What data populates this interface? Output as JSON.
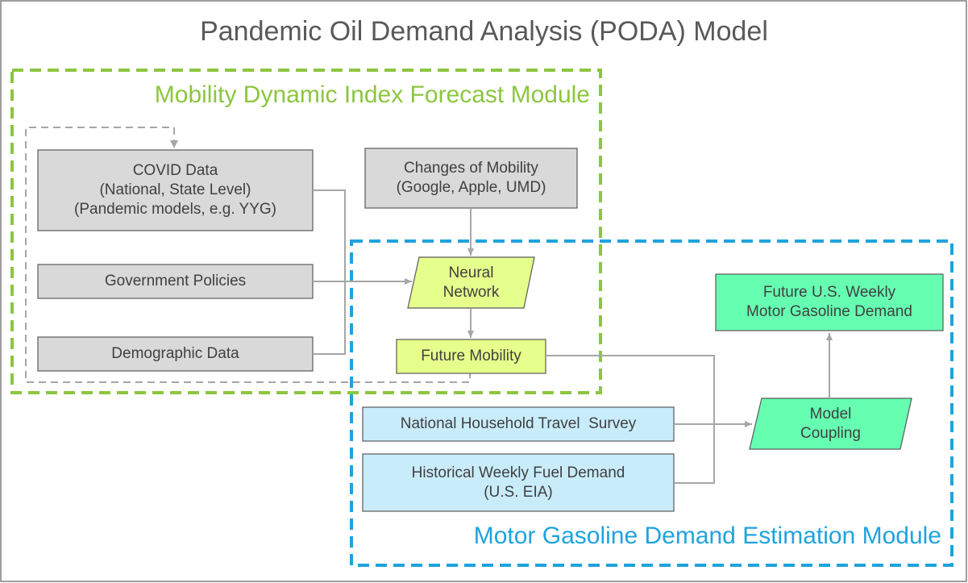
{
  "title": "Pandemic Oil Demand Analysis (PODA) Model",
  "modules": {
    "mobility": "Mobility Dynamic Index Forecast Module",
    "gasoline": "Motor Gasoline Demand Estimation Module"
  },
  "nodes": {
    "covid_data": "COVID Data\n(National, State Level)\n(Pandemic models, e.g. YYG)",
    "government_policies": "Government Policies",
    "demographic_data": "Demographic Data",
    "changes_of_mobility": "Changes of Mobility\n(Google, Apple, UMD)",
    "neural_network": "Neural\nNetwork",
    "future_mobility": "Future Mobility",
    "nhts": "National Household Travel  Survey",
    "historical_fuel": "Historical Weekly Fuel Demand\n(U.S. EIA)",
    "model_coupling": "Model\nCoupling",
    "future_demand": "Future U.S. Weekly\nMotor Gasoline Demand"
  },
  "colors": {
    "gray_fill": "#d9d9d9",
    "yellow_fill": "#e6ff8c",
    "blue_fill": "#c9ecfb",
    "green_fill": "#66ffb2",
    "green_border": "#8cc63f",
    "blue_border": "#1fa3dd",
    "connector": "#a6a6a6"
  }
}
